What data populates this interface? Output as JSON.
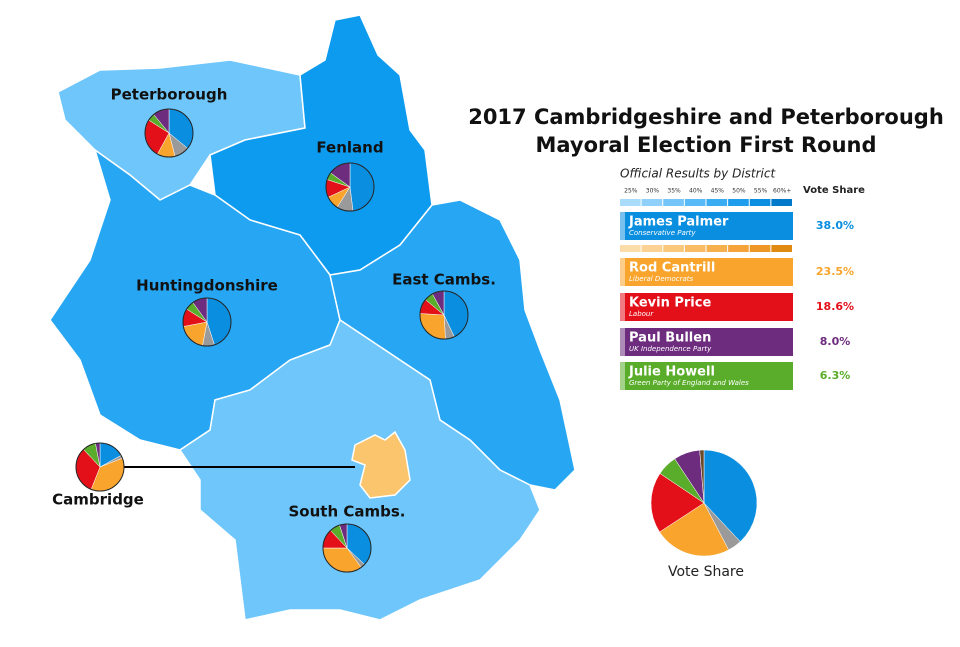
{
  "title": [
    "2017 Cambridgeshire and Peterborough",
    "Mayoral Election First Round"
  ],
  "subtitle": "Official Results by District",
  "vote_share_header": "Vote Share",
  "scale_ticks": [
    "25%",
    "30%",
    "35%",
    "40%",
    "45%",
    "50%",
    "55%",
    "60%+"
  ],
  "scale_colors": {
    "blue": [
      "#a9dcfb",
      "#8fd1fa",
      "#74c6f8",
      "#58baf6",
      "#3aacf2",
      "#1f9eee",
      "#0c8fe0",
      "#0379c9"
    ],
    "orange": [
      "#fcdca8",
      "#fbd293",
      "#fac77c",
      "#f9bc65",
      "#f7b04e",
      "#f5a33a",
      "#ee9726",
      "#e08a12"
    ]
  },
  "candidates": [
    {
      "name": "James Palmer",
      "party": "Conservative Party",
      "color": "#0a8ee0",
      "share": 38.0,
      "share_label": "38.0%"
    },
    {
      "name": "Rod Cantrill",
      "party": "Liberal Democrats",
      "color": "#f9a42c",
      "share": 23.5,
      "share_label": "23.5%"
    },
    {
      "name": "Kevin Price",
      "party": "Labour",
      "color": "#e3101a",
      "share": 18.6,
      "share_label": "18.6%"
    },
    {
      "name": "Paul Bullen",
      "party": "UK Independence Party",
      "color": "#6d2c7d",
      "share": 8.0,
      "share_label": "8.0%"
    },
    {
      "name": "Julie Howell",
      "party": "Green Party of England and Wales",
      "color": "#5aad2a",
      "share": 6.3,
      "share_label": "6.3%"
    }
  ],
  "others": [
    {
      "color": "#9a9a9a",
      "share": 4.3
    },
    {
      "color": "#6b4a2a",
      "share": 1.3
    }
  ],
  "districts": [
    {
      "name": "Peterborough",
      "fill": "#6ec6fa",
      "values": [
        36,
        12,
        26,
        11,
        5,
        10
      ]
    },
    {
      "name": "Fenland",
      "fill": "#0d9bef",
      "values": [
        48,
        9,
        12,
        15,
        5,
        11
      ]
    },
    {
      "name": "Huntingdonshire",
      "fill": "#27a6f3",
      "values": [
        45,
        19,
        12,
        10,
        6,
        8
      ]
    },
    {
      "name": "East Cambs.",
      "fill": "#27a6f3",
      "values": [
        43,
        27,
        10,
        8,
        6,
        6
      ]
    },
    {
      "name": "South Cambs.",
      "fill": "#6ec6fa",
      "values": [
        37,
        35,
        13,
        5,
        7,
        3
      ]
    },
    {
      "name": "Cambridge",
      "fill": "#fbc56e",
      "values": [
        17,
        37,
        32,
        3,
        9,
        2
      ]
    }
  ]
}
